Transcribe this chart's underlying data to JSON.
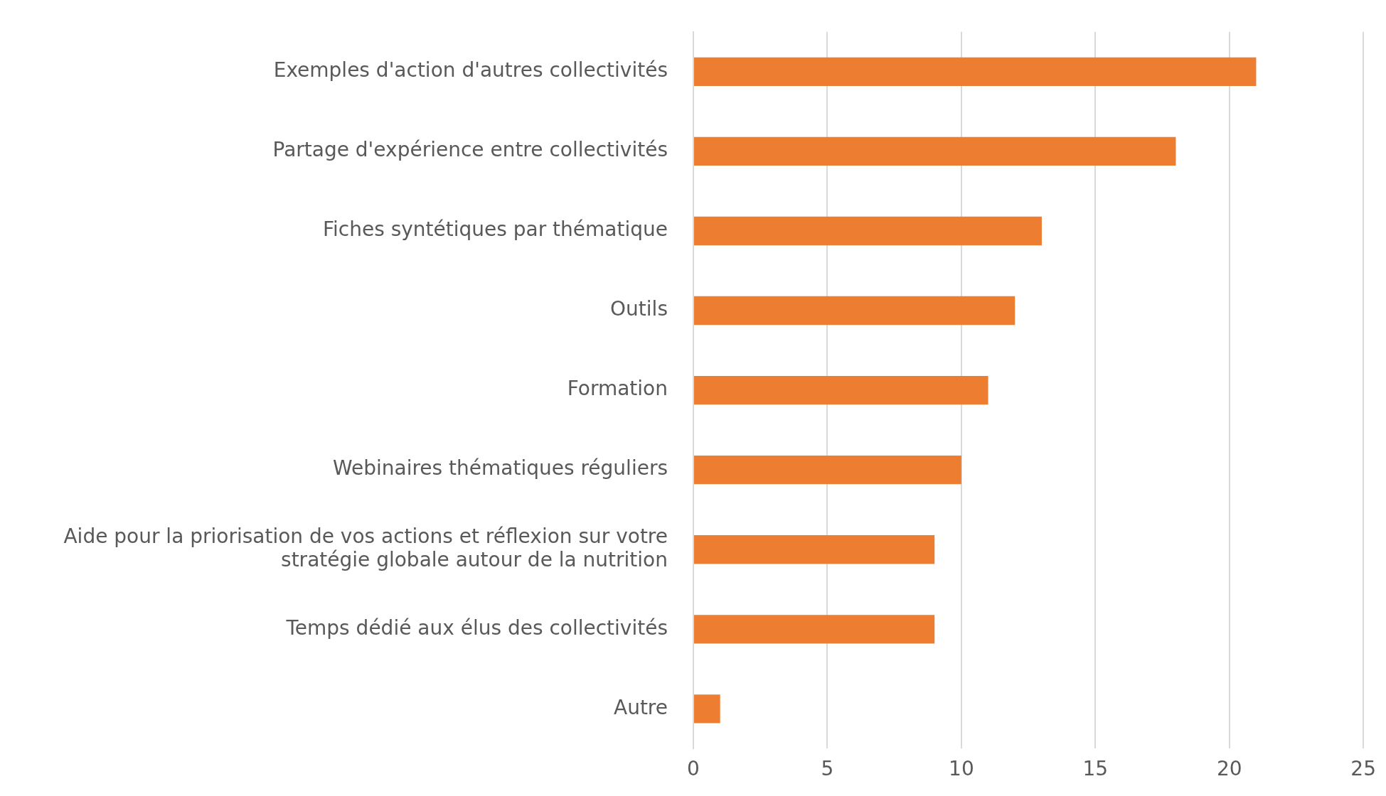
{
  "chart_data": {
    "type": "bar",
    "orientation": "horizontal",
    "categories": [
      "Exemples d'action d'autres collectivités",
      "Partage d'expérience entre collectivités",
      "Fiches syntétiques par thématique",
      "Outils",
      "Formation",
      "Webinaires thématiques réguliers",
      "Aide pour la priorisation de vos actions et réflexion sur votre stratégie globale autour de la nutrition",
      "Temps dédié aux élus des collectivités",
      "Autre"
    ],
    "values": [
      21,
      18,
      13,
      12,
      11,
      10,
      9,
      9,
      1
    ],
    "color": "#ed7d31",
    "xlim": [
      0,
      25
    ],
    "xticks": [
      0,
      5,
      10,
      15,
      20,
      25
    ],
    "grid": "x",
    "legend": false
  }
}
